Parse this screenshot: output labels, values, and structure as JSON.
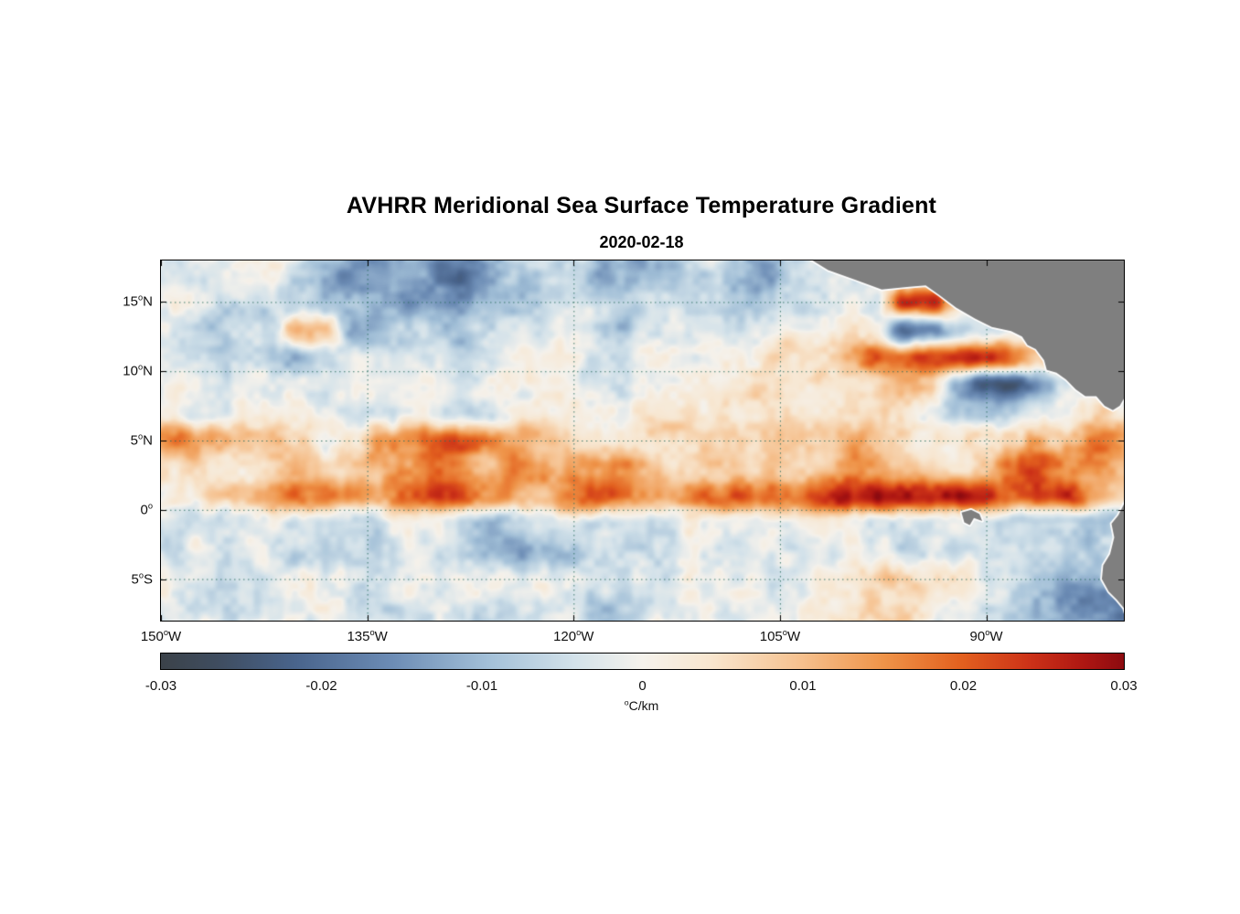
{
  "figure": {
    "title": "AVHRR Meridional Sea Surface Temperature Gradient",
    "subtitle": "2020-02-18"
  },
  "chart_data": {
    "type": "heatmap",
    "title": "AVHRR Meridional Sea Surface Temperature Gradient",
    "date": "2020-02-18",
    "lon_range": [
      -150,
      -80
    ],
    "lat_range": [
      -8,
      18
    ],
    "value_range": [
      -0.03,
      0.03
    ],
    "x_ticks": [
      {
        "num": "150",
        "hem": "W",
        "value": -150
      },
      {
        "num": "135",
        "hem": "W",
        "value": -135
      },
      {
        "num": "120",
        "hem": "W",
        "value": -120
      },
      {
        "num": "105",
        "hem": "W",
        "value": -105
      },
      {
        "num": "90",
        "hem": "W",
        "value": -90
      }
    ],
    "y_ticks": [
      {
        "num": "15",
        "hem": "N",
        "value": 15
      },
      {
        "num": "10",
        "hem": "N",
        "value": 10
      },
      {
        "num": "5",
        "hem": "N",
        "value": 5
      },
      {
        "num": "0",
        "hem": "",
        "value": 0
      },
      {
        "num": "5",
        "hem": "S",
        "value": -5
      }
    ],
    "grid_lines": {
      "color": "#2a6e60"
    },
    "grid": {
      "lon0": -150,
      "dlon": 2,
      "lat0": 17,
      "dlat": -2,
      "scale": 0.001,
      "values": [
        [
          -2,
          -4,
          -5,
          -3,
          -2,
          -6,
          -10,
          -16,
          -14,
          -10,
          -14,
          -18,
          -16,
          -10,
          -6,
          -8,
          -14,
          -12,
          -8,
          -10,
          -6,
          -12,
          -16,
          -10,
          -4,
          -6,
          -4,
          -2,
          0,
          -2,
          -2,
          -1,
          0,
          0,
          0,
          0
        ],
        [
          -1,
          -2,
          -4,
          -2,
          -2,
          -3,
          -4,
          -6,
          -8,
          -10,
          -12,
          -14,
          -12,
          -8,
          -4,
          -3,
          -5,
          -8,
          -6,
          -4,
          -2,
          -6,
          -8,
          -5,
          -2,
          0,
          -4,
          24,
          22,
          4,
          0,
          0,
          0,
          0,
          0,
          0
        ],
        [
          -4,
          -8,
          -10,
          -6,
          -6,
          12,
          12,
          -12,
          -8,
          -4,
          -5,
          -7,
          -6,
          -5,
          -4,
          -3,
          -5,
          -7,
          -6,
          -4,
          -2,
          -1,
          -2,
          -2,
          0,
          2,
          -2,
          -18,
          -16,
          -6,
          0,
          2,
          2,
          0,
          0,
          0
        ],
        [
          -4,
          -7,
          -9,
          -6,
          -10,
          -12,
          -6,
          -3,
          -2,
          -2,
          -3,
          -4,
          -3,
          -2,
          -1,
          -2,
          -3,
          -2,
          -1,
          0,
          1,
          2,
          1,
          2,
          4,
          10,
          18,
          22,
          24,
          26,
          28,
          24,
          12,
          4,
          -2,
          -3
        ],
        [
          -2,
          -3,
          -3,
          -2,
          -1,
          -2,
          -4,
          -3,
          -2,
          -1,
          -2,
          -3,
          -2,
          -1,
          0,
          1,
          0,
          -1,
          0,
          1,
          2,
          2,
          2,
          3,
          4,
          6,
          10,
          10,
          6,
          -12,
          -20,
          -22,
          -14,
          -4,
          2,
          2
        ],
        [
          0,
          -1,
          -2,
          -1,
          0,
          -1,
          -2,
          -3,
          -2,
          -1,
          -3,
          -4,
          -3,
          -1,
          0,
          2,
          1,
          0,
          1,
          2,
          3,
          4,
          3,
          2,
          3,
          4,
          3,
          0,
          -4,
          -8,
          -10,
          -6,
          0,
          4,
          6,
          3
        ],
        [
          14,
          18,
          14,
          8,
          10,
          6,
          -4,
          6,
          12,
          16,
          20,
          22,
          18,
          12,
          8,
          6,
          4,
          3,
          4,
          5,
          6,
          8,
          6,
          5,
          8,
          10,
          6,
          4,
          2,
          3,
          4,
          6,
          10,
          12,
          18,
          10
        ],
        [
          6,
          9,
          6,
          4,
          6,
          9,
          8,
          6,
          10,
          14,
          16,
          12,
          14,
          16,
          12,
          10,
          12,
          14,
          10,
          8,
          10,
          12,
          10,
          8,
          10,
          12,
          14,
          12,
          10,
          8,
          12,
          16,
          18,
          16,
          12,
          8
        ],
        [
          4,
          6,
          8,
          10,
          14,
          18,
          20,
          16,
          12,
          16,
          20,
          22,
          18,
          14,
          12,
          18,
          22,
          18,
          14,
          12,
          16,
          20,
          18,
          16,
          22,
          26,
          28,
          24,
          26,
          30,
          26,
          20,
          24,
          22,
          14,
          8
        ],
        [
          0,
          -2,
          -3,
          -2,
          -1,
          -2,
          -3,
          -4,
          -3,
          -2,
          -4,
          -6,
          -8,
          -6,
          -4,
          -3,
          -2,
          -3,
          -4,
          -3,
          -2,
          -3,
          -4,
          -3,
          -2,
          -3,
          -4,
          -5,
          -4,
          -3,
          -4,
          -5,
          -6,
          -8,
          -10,
          -6
        ],
        [
          -2,
          -3,
          -4,
          -3,
          -2,
          -4,
          -6,
          -4,
          -3,
          -2,
          -4,
          -8,
          -12,
          -14,
          -10,
          -6,
          -4,
          -3,
          -2,
          -3,
          -4,
          -3,
          -2,
          -3,
          -2,
          -3,
          -4,
          -3,
          -4,
          -6,
          -5,
          -4,
          -6,
          -8,
          -12,
          -8
        ],
        [
          -1,
          -2,
          -3,
          -2,
          -1,
          -2,
          -3,
          -2,
          -1,
          -2,
          -3,
          -4,
          -3,
          -2,
          -1,
          -2,
          -3,
          -2,
          -1,
          -2,
          -3,
          -2,
          -1,
          0,
          2,
          4,
          6,
          8,
          6,
          4,
          -2,
          -6,
          -8,
          -10,
          -14,
          -16
        ],
        [
          -2,
          -3,
          -2,
          -1,
          -2,
          -3,
          -2,
          -3,
          -4,
          -3,
          -2,
          -4,
          -6,
          -5,
          -4,
          -6,
          -10,
          -8,
          -4,
          -2,
          -3,
          -2,
          -1,
          0,
          2,
          4,
          6,
          4,
          2,
          0,
          -4,
          -8,
          -10,
          -14,
          -18,
          -20
        ]
      ]
    },
    "colormap": [
      {
        "t": 0.0,
        "c": "#3b4249"
      },
      {
        "t": 0.06,
        "c": "#3f4d60"
      },
      {
        "t": 0.14,
        "c": "#49648c"
      },
      {
        "t": 0.24,
        "c": "#6c8cb5"
      },
      {
        "t": 0.34,
        "c": "#a3c0d8"
      },
      {
        "t": 0.43,
        "c": "#d3e2ea"
      },
      {
        "t": 0.5,
        "c": "#f5f2ec"
      },
      {
        "t": 0.57,
        "c": "#f8e6cf"
      },
      {
        "t": 0.66,
        "c": "#f6c392"
      },
      {
        "t": 0.75,
        "c": "#ef9449"
      },
      {
        "t": 0.83,
        "c": "#e3611f"
      },
      {
        "t": 0.9,
        "c": "#cd3318"
      },
      {
        "t": 0.96,
        "c": "#ad1612"
      },
      {
        "t": 1.0,
        "c": "#8c0b10"
      }
    ],
    "colorbar": {
      "ticks": [
        {
          "label": "-0.03",
          "value": -0.03
        },
        {
          "label": "-0.02",
          "value": -0.02
        },
        {
          "label": "-0.01",
          "value": -0.01
        },
        {
          "label": "0",
          "value": 0
        },
        {
          "label": "0.01",
          "value": 0.01
        },
        {
          "label": "0.02",
          "value": 0.02
        },
        {
          "label": "0.03",
          "value": 0.03
        }
      ],
      "unit_sup": "o",
      "unit_text": "C/km"
    },
    "land": {
      "color": "#7f7f7f",
      "outline": "#ffffff",
      "polygons": [
        [
          [
            -103.6,
            18.6
          ],
          [
            -101.5,
            17.3
          ],
          [
            -99.5,
            16.6
          ],
          [
            -97.6,
            15.9
          ],
          [
            -95.6,
            16.1
          ],
          [
            -94.4,
            16.2
          ],
          [
            -93.4,
            15.5
          ],
          [
            -92.2,
            14.6
          ],
          [
            -90.8,
            13.8
          ],
          [
            -89.6,
            13.2
          ],
          [
            -88.2,
            12.9
          ],
          [
            -87.4,
            12.5
          ],
          [
            -87.0,
            11.9
          ],
          [
            -86.4,
            11.6
          ],
          [
            -85.8,
            10.8
          ],
          [
            -85.6,
            10.1
          ],
          [
            -84.9,
            9.9
          ],
          [
            -84.2,
            9.4
          ],
          [
            -83.5,
            8.7
          ],
          [
            -82.8,
            8.2
          ],
          [
            -82.0,
            8.2
          ],
          [
            -81.4,
            7.5
          ],
          [
            -80.8,
            7.2
          ],
          [
            -80.3,
            7.5
          ],
          [
            -79.9,
            8.2
          ],
          [
            -79.4,
            8.7
          ],
          [
            -78.8,
            8.9
          ],
          [
            -78.3,
            8.2
          ],
          [
            -78.0,
            7.0
          ],
          [
            -77.7,
            5.8
          ],
          [
            -77.5,
            4.2
          ],
          [
            -77.9,
            3.0
          ],
          [
            -78.6,
            2.0
          ],
          [
            -79.6,
            1.1
          ],
          [
            -80.0,
            0.4
          ],
          [
            -80.4,
            -0.4
          ],
          [
            -80.9,
            -1.0
          ],
          [
            -80.7,
            -2.0
          ],
          [
            -81.0,
            -3.2
          ],
          [
            -81.5,
            -4.0
          ],
          [
            -81.6,
            -5.0
          ],
          [
            -81.1,
            -5.9
          ],
          [
            -80.5,
            -6.5
          ],
          [
            -80.0,
            -7.1
          ],
          [
            -79.6,
            -8.5
          ],
          [
            -74.0,
            -9.0
          ],
          [
            -74.0,
            19.0
          ]
        ],
        [
          [
            -91.8,
            -0.2
          ],
          [
            -91.1,
            0.0
          ],
          [
            -90.5,
            -0.3
          ],
          [
            -90.3,
            -0.8
          ],
          [
            -90.9,
            -0.6
          ],
          [
            -91.2,
            -1.1
          ],
          [
            -91.6,
            -0.9
          ]
        ]
      ]
    }
  }
}
